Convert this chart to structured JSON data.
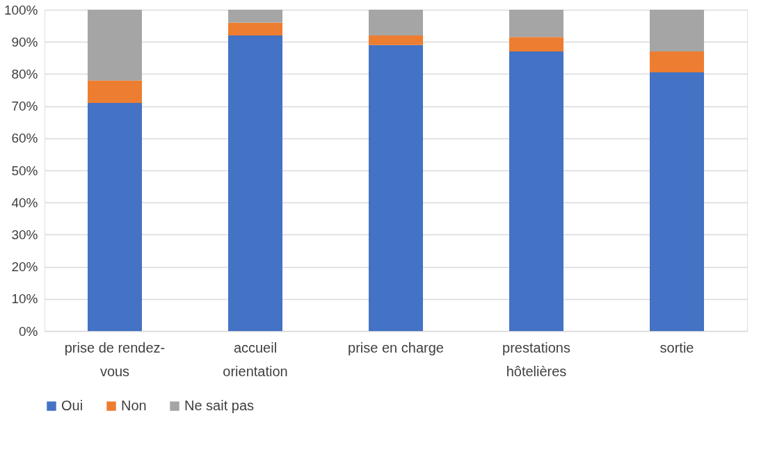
{
  "chart_data": {
    "type": "bar",
    "stacked": true,
    "categories": [
      "prise de rendez-vous",
      "accueil orientation",
      "prise en charge",
      "prestations hôtelières",
      "sortie"
    ],
    "series": [
      {
        "name": "Oui",
        "color": "#4472c4",
        "values": [
          71,
          92,
          89,
          87,
          80.5
        ]
      },
      {
        "name": "Non",
        "color": "#ed7d31",
        "values": [
          7,
          4,
          3,
          4.5,
          6.5
        ]
      },
      {
        "name": "Ne sait pas",
        "color": "#a5a5a5",
        "values": [
          22,
          4,
          8,
          8.5,
          13
        ]
      }
    ],
    "ylim": [
      0,
      100
    ],
    "yticks": [
      {
        "value": 0,
        "label": "0%"
      },
      {
        "value": 10,
        "label": "10%"
      },
      {
        "value": 20,
        "label": "20%"
      },
      {
        "value": 30,
        "label": "30%"
      },
      {
        "value": 40,
        "label": "40%"
      },
      {
        "value": 50,
        "label": "50%"
      },
      {
        "value": 60,
        "label": "60%"
      },
      {
        "value": 70,
        "label": "70%"
      },
      {
        "value": 80,
        "label": "80%"
      },
      {
        "value": 90,
        "label": "90%"
      },
      {
        "value": 100,
        "label": "100%"
      }
    ],
    "grid": "y",
    "legend": "bottom"
  }
}
